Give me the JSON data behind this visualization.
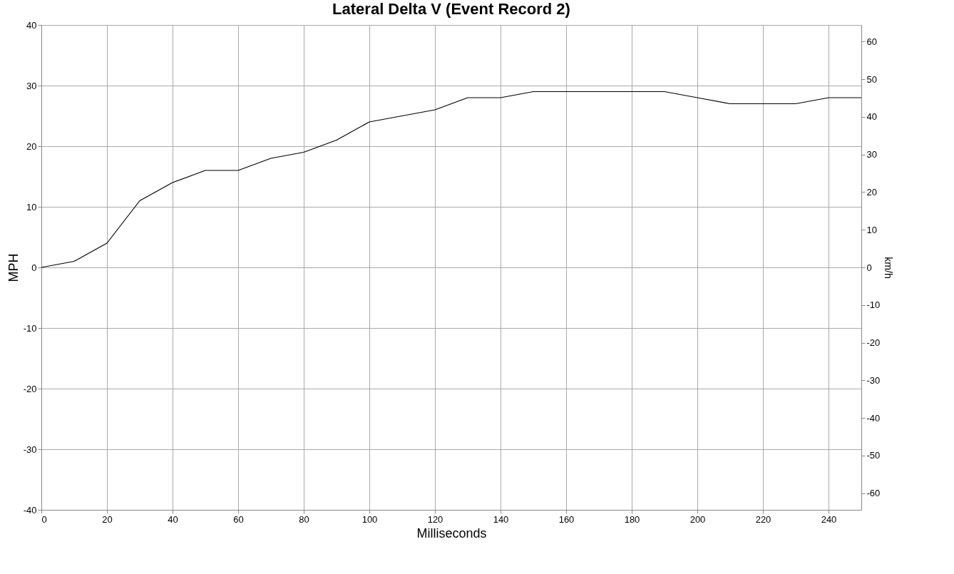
{
  "chart_data": {
    "type": "line",
    "title": "Lateral Delta V (Event Record 2)",
    "xlabel": "Milliseconds",
    "ylabel": "MPH",
    "y2label": "km/h",
    "x": [
      0,
      10,
      20,
      30,
      40,
      50,
      60,
      70,
      80,
      90,
      100,
      110,
      120,
      130,
      140,
      150,
      160,
      170,
      180,
      190,
      200,
      210,
      220,
      230,
      240,
      250
    ],
    "series": [
      {
        "color": "#000000",
        "values": [
          0,
          1,
          4,
          11,
          14,
          16,
          16,
          18,
          19,
          21,
          24,
          25,
          26,
          28,
          28,
          29,
          29,
          29,
          29,
          29,
          28,
          27,
          27,
          27,
          28,
          28
        ]
      }
    ],
    "xlim": [
      0,
      250
    ],
    "xticks": [
      0,
      20,
      40,
      60,
      80,
      100,
      120,
      140,
      160,
      180,
      200,
      220,
      240
    ],
    "ylim": [
      -40,
      40
    ],
    "yticks": [
      -40,
      -30,
      -20,
      -10,
      0,
      10,
      20,
      30,
      40
    ],
    "y2lim": [
      -64.4,
      64.4
    ],
    "y2ticks": [
      -60,
      -50,
      -40,
      -30,
      -20,
      -10,
      0,
      10,
      20,
      30,
      40,
      50,
      60
    ],
    "grid": true,
    "marker": "none",
    "line_style": "solid"
  }
}
